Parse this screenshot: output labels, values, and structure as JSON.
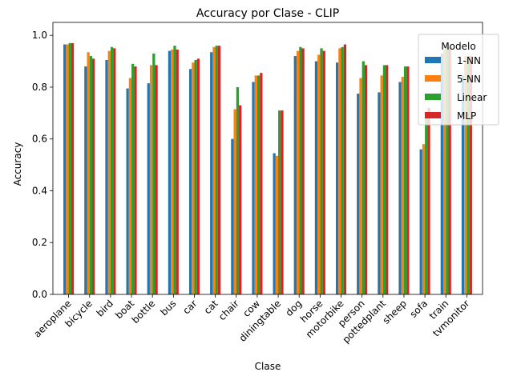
{
  "chart_data": {
    "type": "bar",
    "title": "Accuracy por Clase - CLIP",
    "xlabel": "Clase",
    "ylabel": "Accuracy",
    "ylim": [
      0,
      1.0
    ],
    "yticks": [
      0.0,
      0.2,
      0.4,
      0.6,
      0.8,
      1.0
    ],
    "ytick_labels": [
      "0.0",
      "0.2",
      "0.4",
      "0.6",
      "0.8",
      "1.0"
    ],
    "grid": false,
    "legend": {
      "title": "Modelo",
      "placement": "top-right"
    },
    "categories": [
      "aeroplane",
      "bicycle",
      "bird",
      "boat",
      "bottle",
      "bus",
      "car",
      "cat",
      "chair",
      "cow",
      "diningtable",
      "dog",
      "horse",
      "motorbike",
      "person",
      "pottedplant",
      "sheep",
      "sofa",
      "train",
      "tvmonitor"
    ],
    "series": [
      {
        "name": "1-NN",
        "color": "#1f77b4",
        "values": [
          0.965,
          0.88,
          0.905,
          0.795,
          0.815,
          0.94,
          0.87,
          0.935,
          0.6,
          0.82,
          0.545,
          0.92,
          0.9,
          0.895,
          0.775,
          0.78,
          0.82,
          0.56,
          0.93,
          0.845
        ]
      },
      {
        "name": "5-NN",
        "color": "#ff7f0e",
        "values": [
          0.965,
          0.935,
          0.94,
          0.835,
          0.885,
          0.945,
          0.895,
          0.955,
          0.715,
          0.845,
          0.535,
          0.94,
          0.925,
          0.95,
          0.835,
          0.845,
          0.84,
          0.58,
          0.945,
          0.92
        ]
      },
      {
        "name": "Linear",
        "color": "#2ca02c",
        "values": [
          0.97,
          0.92,
          0.955,
          0.89,
          0.93,
          0.96,
          0.905,
          0.96,
          0.8,
          0.845,
          0.71,
          0.955,
          0.95,
          0.955,
          0.9,
          0.885,
          0.88,
          0.7,
          0.96,
          0.92
        ]
      },
      {
        "name": "MLP",
        "color": "#d62728",
        "values": [
          0.97,
          0.91,
          0.95,
          0.88,
          0.885,
          0.945,
          0.91,
          0.96,
          0.73,
          0.855,
          0.71,
          0.95,
          0.94,
          0.965,
          0.885,
          0.885,
          0.88,
          0.72,
          0.955,
          0.92
        ]
      }
    ]
  }
}
